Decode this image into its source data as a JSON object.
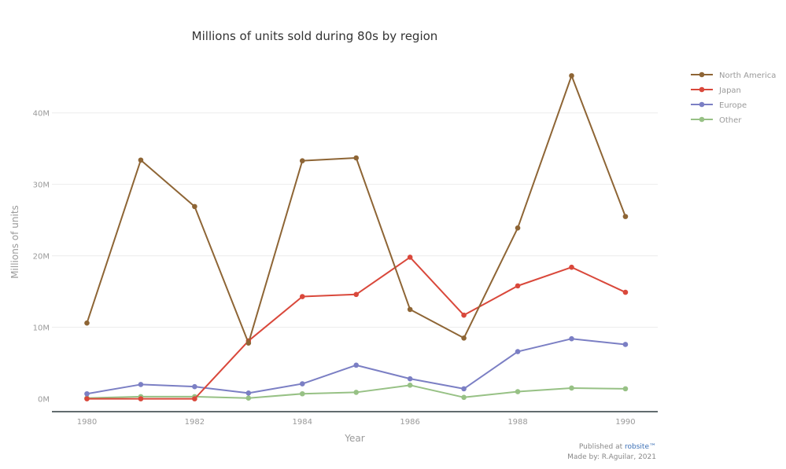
{
  "chart_data": {
    "type": "line",
    "title": "Millions of units sold during 80s by region",
    "xlabel": "Year",
    "ylabel": "Millions of units",
    "x": [
      1980,
      1981,
      1982,
      1983,
      1984,
      1985,
      1986,
      1987,
      1988,
      1989,
      1990
    ],
    "xticks": [
      "1980",
      "1982",
      "1984",
      "1986",
      "1988",
      "1990"
    ],
    "yticks": [
      "0M",
      "10M",
      "20M",
      "30M",
      "40M"
    ],
    "ylim": [
      -1.8,
      47
    ],
    "xlim": [
      1979.35,
      1990.6
    ],
    "grid": true,
    "legend_position": "top-right",
    "series": [
      {
        "name": "North America",
        "color": "#8e6535",
        "values": [
          10.6,
          33.4,
          26.9,
          7.8,
          33.3,
          33.7,
          12.5,
          8.5,
          23.9,
          45.2,
          25.5
        ]
      },
      {
        "name": "Japan",
        "color": "#d9483b",
        "values": [
          0.0,
          0.0,
          0.0,
          8.1,
          14.3,
          14.6,
          19.8,
          11.7,
          15.8,
          18.4,
          14.9
        ]
      },
      {
        "name": "Europe",
        "color": "#7b7fc4",
        "values": [
          0.7,
          2.0,
          1.7,
          0.8,
          2.1,
          4.7,
          2.8,
          1.4,
          6.6,
          8.4,
          7.6
        ]
      },
      {
        "name": "Other",
        "color": "#97c185",
        "values": [
          0.1,
          0.3,
          0.3,
          0.1,
          0.7,
          0.9,
          1.9,
          0.2,
          1.0,
          1.5,
          1.4
        ]
      }
    ]
  },
  "footer": {
    "published_prefix": "Published at ",
    "published_site": "robsite™",
    "made_by": "Made by: R.Aguilar, 2021"
  }
}
